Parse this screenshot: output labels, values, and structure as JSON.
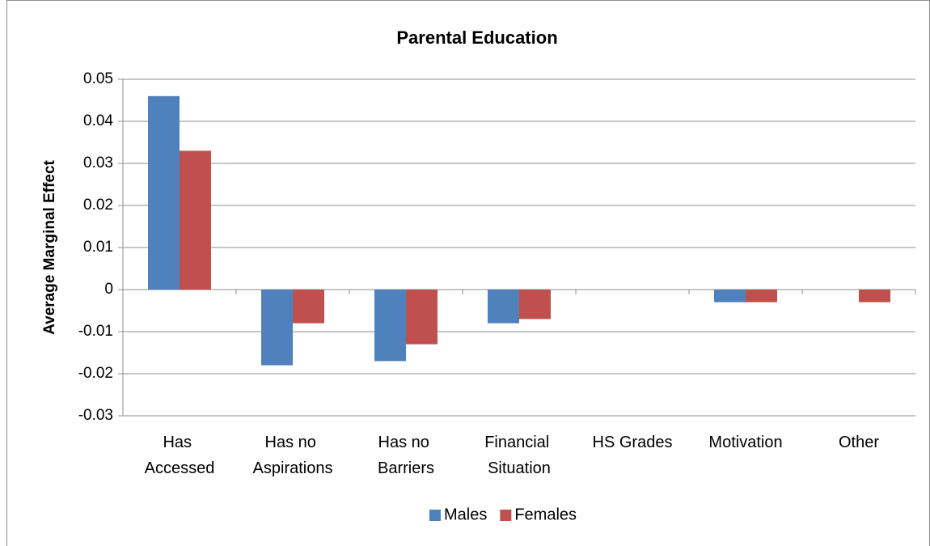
{
  "chart_data": {
    "type": "bar",
    "title": "Parental Education",
    "y_label": "Average Marginal Effect",
    "categories": [
      "Has Accessed",
      "Has no Aspirations",
      "Has no Barriers",
      "Financial Situation",
      "HS Grades",
      "Motivation",
      "Other"
    ],
    "series": [
      {
        "name": "Males",
        "color": "#4f81bd",
        "values": [
          0.046,
          -0.018,
          -0.017,
          -0.008,
          0,
          -0.003,
          0
        ]
      },
      {
        "name": "Females",
        "color": "#c0504d",
        "values": [
          0.033,
          -0.008,
          -0.013,
          -0.007,
          0,
          -0.003,
          -0.003
        ]
      }
    ],
    "ylim": [
      -0.03,
      0.05
    ],
    "yticks": [
      -0.03,
      -0.02,
      -0.01,
      0,
      0.01,
      0.02,
      0.03,
      0.04,
      0.05
    ],
    "grid": true,
    "legend": "bottom"
  }
}
